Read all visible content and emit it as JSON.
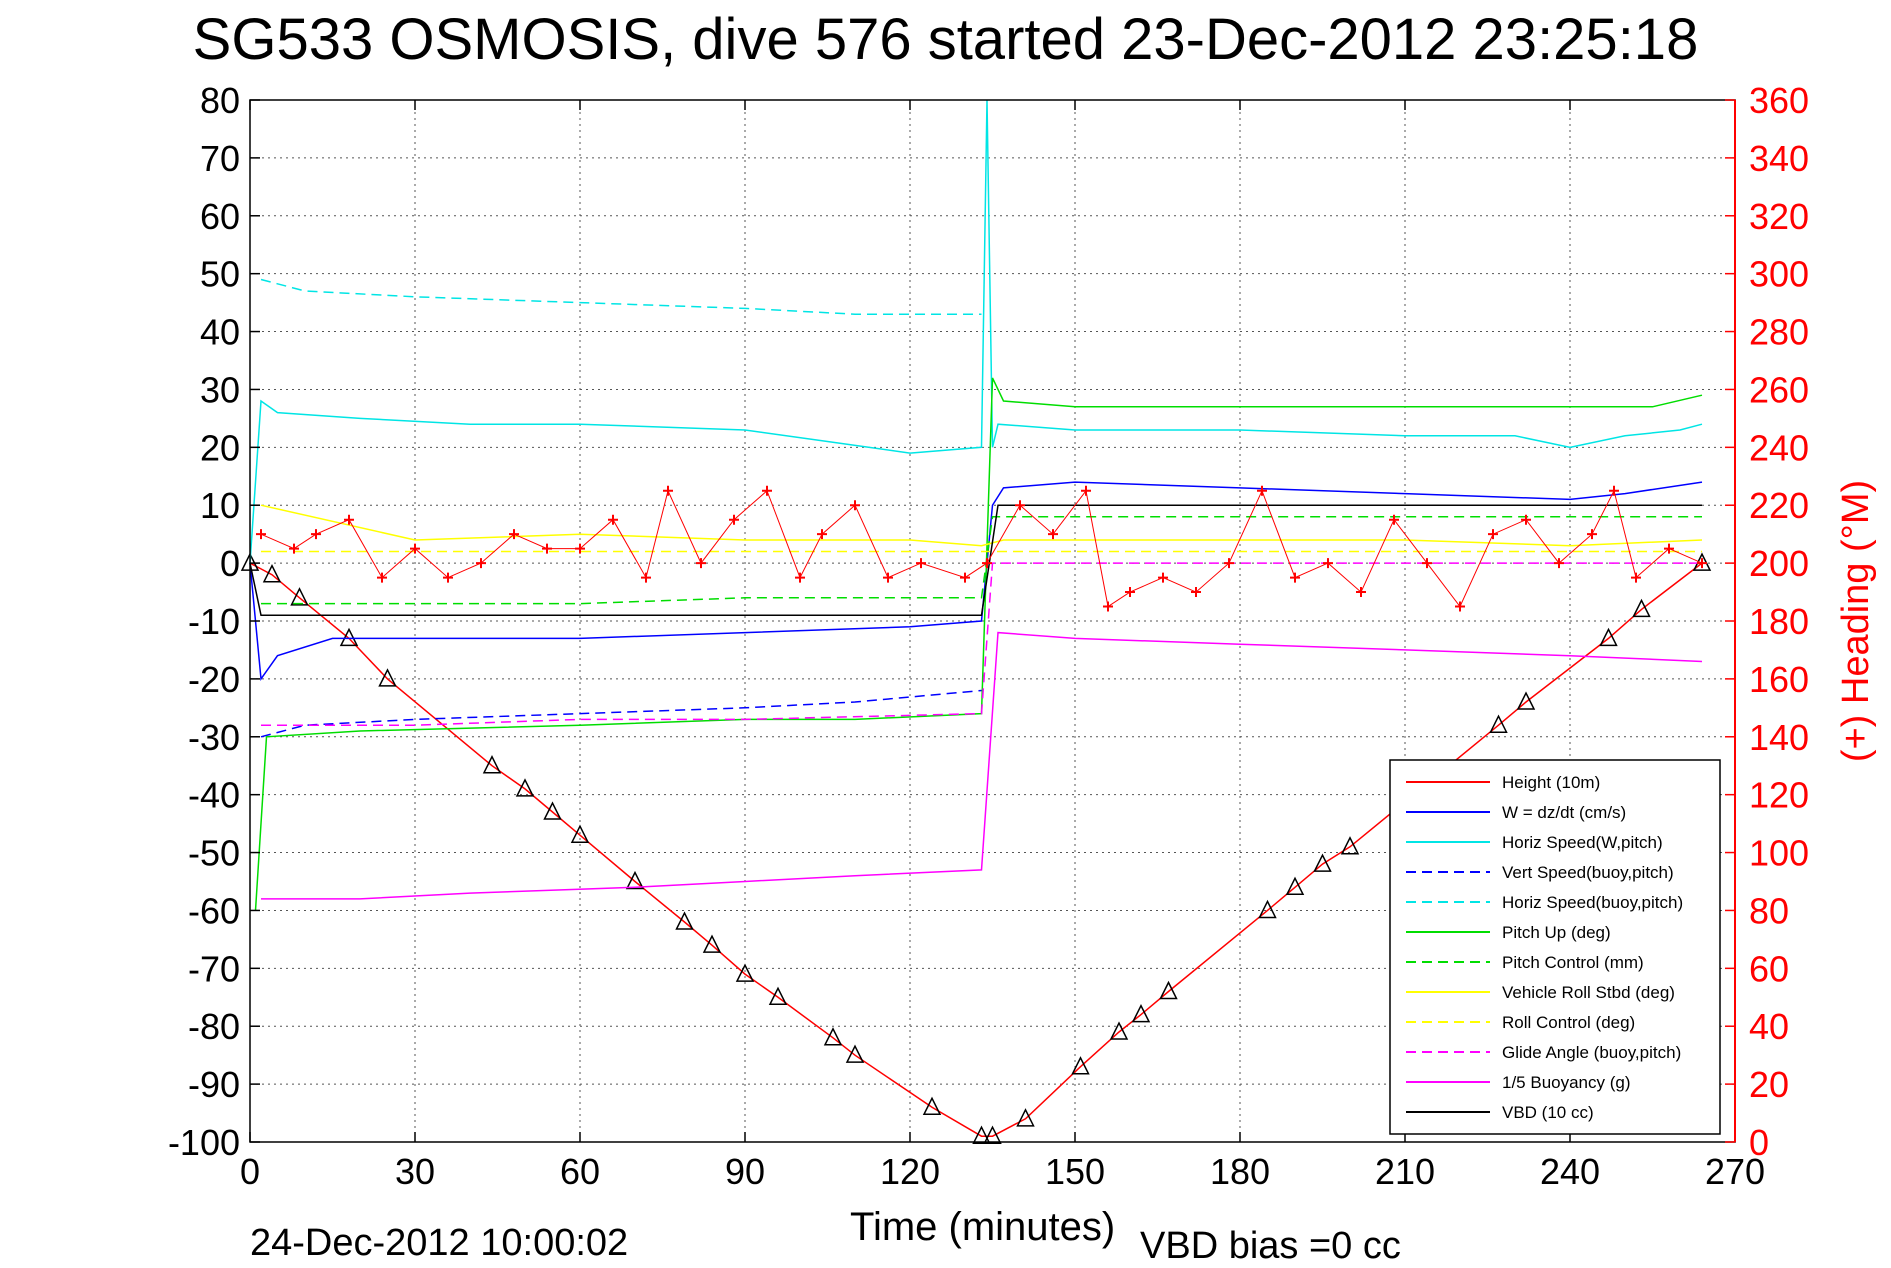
{
  "title": "SG533 OSMOSIS, dive 576 started 23-Dec-2012 23:25:18",
  "footer": {
    "date": "24-Dec-2012 10:00:02",
    "vbd_bias": "VBD bias =0 cc"
  },
  "colors": {
    "height": "#ff0000",
    "w": "#0000ff",
    "horiz_speed": "#00e5e5",
    "pitch": "#00dd00",
    "roll": "#ffff00",
    "glide": "#ff00ff",
    "vbd": "#000000",
    "right_axis": "#ff0000"
  },
  "chart_data": {
    "type": "line",
    "xlabel": "Time (minutes)",
    "ylabel_right": "(+) Heading (°M)",
    "xlim": [
      0,
      270
    ],
    "ylim": [
      -100,
      80
    ],
    "ylim_right": [
      0,
      360
    ],
    "x_ticks": [
      "0",
      "30",
      "60",
      "90",
      "120",
      "150",
      "180",
      "210",
      "240",
      "270"
    ],
    "y_ticks": [
      "80",
      "70",
      "60",
      "50",
      "40",
      "30",
      "20",
      "10",
      "0",
      "-10",
      "-20",
      "-30",
      "-40",
      "-50",
      "-60",
      "-70",
      "-80",
      "-90",
      "-100"
    ],
    "y_right_ticks": [
      "360",
      "340",
      "320",
      "300",
      "280",
      "260",
      "240",
      "220",
      "200",
      "180",
      "160",
      "140",
      "120",
      "100",
      "80",
      "60",
      "40",
      "20",
      "0"
    ],
    "grid": true,
    "legend_position": "bottom-right",
    "series": [
      {
        "name": "Height (10m)",
        "color": "#ff0000",
        "dash": "solid",
        "markers": "triangle",
        "x": [
          0,
          4,
          9,
          18,
          25,
          44,
          50,
          55,
          60,
          70,
          79,
          84,
          90,
          96,
          106,
          110,
          124,
          133,
          135,
          141,
          151,
          158,
          162,
          167,
          185,
          190,
          195,
          200,
          227,
          232,
          247,
          253,
          264
        ],
        "y": [
          0,
          -2,
          -6,
          -13,
          -20,
          -35,
          -39,
          -43,
          -47,
          -55,
          -62,
          -66,
          -71,
          -75,
          -82,
          -85,
          -94,
          -99,
          -99,
          -96,
          -87,
          -81,
          -78,
          -74,
          -60,
          -56,
          -52,
          -49,
          -28,
          -24,
          -13,
          -8,
          0
        ]
      },
      {
        "name": "W = dz/dt (cm/s)",
        "color": "#0000ff",
        "dash": "solid",
        "x": [
          0,
          1,
          2,
          5,
          15,
          30,
          60,
          90,
          120,
          133,
          135,
          137,
          150,
          180,
          210,
          240,
          250,
          264
        ],
        "y": [
          0,
          -10,
          -20,
          -16,
          -13,
          -13,
          -13,
          -12,
          -11,
          -10,
          10,
          13,
          14,
          13,
          12,
          11,
          12,
          14
        ]
      },
      {
        "name": "Horiz Speed(W,pitch)",
        "color": "#00e5e5",
        "dash": "solid",
        "x": [
          0,
          2,
          5,
          20,
          40,
          60,
          90,
          105,
          120,
          133,
          134,
          135,
          136,
          150,
          180,
          210,
          230,
          240,
          250,
          260,
          264
        ],
        "y": [
          0,
          28,
          26,
          25,
          24,
          24,
          23,
          21,
          19,
          20,
          80,
          20,
          24,
          23,
          23,
          22,
          22,
          20,
          22,
          23,
          24
        ]
      },
      {
        "name": "Vert Speed(buoy,pitch)",
        "color": "#0000ff",
        "dash": "dashed",
        "x": [
          2,
          10,
          30,
          60,
          90,
          110,
          133
        ],
        "y": [
          -30,
          -28,
          -27,
          -26,
          -25,
          -24,
          -22
        ]
      },
      {
        "name": "Horiz Speed(buoy,pitch)",
        "color": "#00e5e5",
        "dash": "dashed",
        "x": [
          2,
          10,
          30,
          60,
          90,
          110,
          133
        ],
        "y": [
          49,
          47,
          46,
          45,
          44,
          43,
          43
        ]
      },
      {
        "name": "Pitch Up (deg)",
        "color": "#00dd00",
        "dash": "solid",
        "x": [
          1,
          3,
          20,
          60,
          90,
          110,
          133,
          135,
          137,
          150,
          180,
          210,
          240,
          255,
          264
        ],
        "y": [
          -60,
          -30,
          -29,
          -28,
          -27,
          -27,
          -26,
          32,
          28,
          27,
          27,
          27,
          27,
          27,
          29
        ]
      },
      {
        "name": "Pitch Control (mm)",
        "color": "#00dd00",
        "dash": "dashed",
        "x": [
          2,
          30,
          60,
          90,
          133,
          135,
          180,
          264
        ],
        "y": [
          -7,
          -7,
          -7,
          -6,
          -6,
          8,
          8,
          8
        ]
      },
      {
        "name": "Vehicle Roll Stbd (deg)",
        "color": "#ffff00",
        "dash": "solid",
        "x": [
          2,
          30,
          60,
          90,
          120,
          133,
          137,
          150,
          180,
          210,
          240,
          264
        ],
        "y": [
          10,
          4,
          5,
          4,
          4,
          3,
          4,
          4,
          4,
          4,
          3,
          4
        ]
      },
      {
        "name": "Roll Control (deg)",
        "color": "#ffff00",
        "dash": "dashed",
        "x": [
          2,
          133,
          135,
          264
        ],
        "y": [
          2,
          2,
          2,
          2
        ]
      },
      {
        "name": "Glide Angle (buoy,pitch)",
        "color": "#ff00ff",
        "dash": "dashed",
        "x": [
          2,
          30,
          60,
          90,
          133,
          135,
          264
        ],
        "y": [
          -28,
          -28,
          -27,
          -27,
          -26,
          0,
          0
        ]
      },
      {
        "name": "1/5 Buoyancy (g)",
        "color": "#ff00ff",
        "dash": "solid",
        "x": [
          2,
          20,
          40,
          70,
          90,
          110,
          133,
          136,
          150,
          180,
          210,
          240,
          264
        ],
        "y": [
          -58,
          -58,
          -57,
          -56,
          -55,
          -54,
          -53,
          -12,
          -13,
          -14,
          -15,
          -16,
          -17
        ]
      },
      {
        "name": "VBD (10 cc)",
        "color": "#000000",
        "dash": "solid",
        "x": [
          0,
          2,
          133,
          136,
          264
        ],
        "y": [
          0,
          -9,
          -9,
          10,
          10
        ]
      },
      {
        "name": "(+) Heading (°M)",
        "color": "#ff0000",
        "axis": "right",
        "markers": "plus",
        "x": [
          2,
          8,
          12,
          18,
          24,
          30,
          36,
          42,
          48,
          54,
          60,
          66,
          72,
          76,
          82,
          88,
          94,
          100,
          104,
          110,
          116,
          122,
          130,
          134,
          140,
          146,
          152,
          156,
          160,
          166,
          172,
          178,
          184,
          190,
          196,
          202,
          208,
          214,
          220,
          226,
          232,
          238,
          244,
          248,
          252,
          258,
          264
        ],
        "y": [
          210,
          205,
          210,
          215,
          195,
          205,
          195,
          200,
          210,
          205,
          205,
          215,
          195,
          225,
          200,
          215,
          225,
          195,
          210,
          220,
          195,
          200,
          195,
          200,
          220,
          210,
          225,
          185,
          190,
          195,
          190,
          200,
          225,
          195,
          200,
          190,
          215,
          200,
          185,
          210,
          215,
          200,
          210,
          225,
          195,
          205,
          200
        ]
      }
    ]
  }
}
